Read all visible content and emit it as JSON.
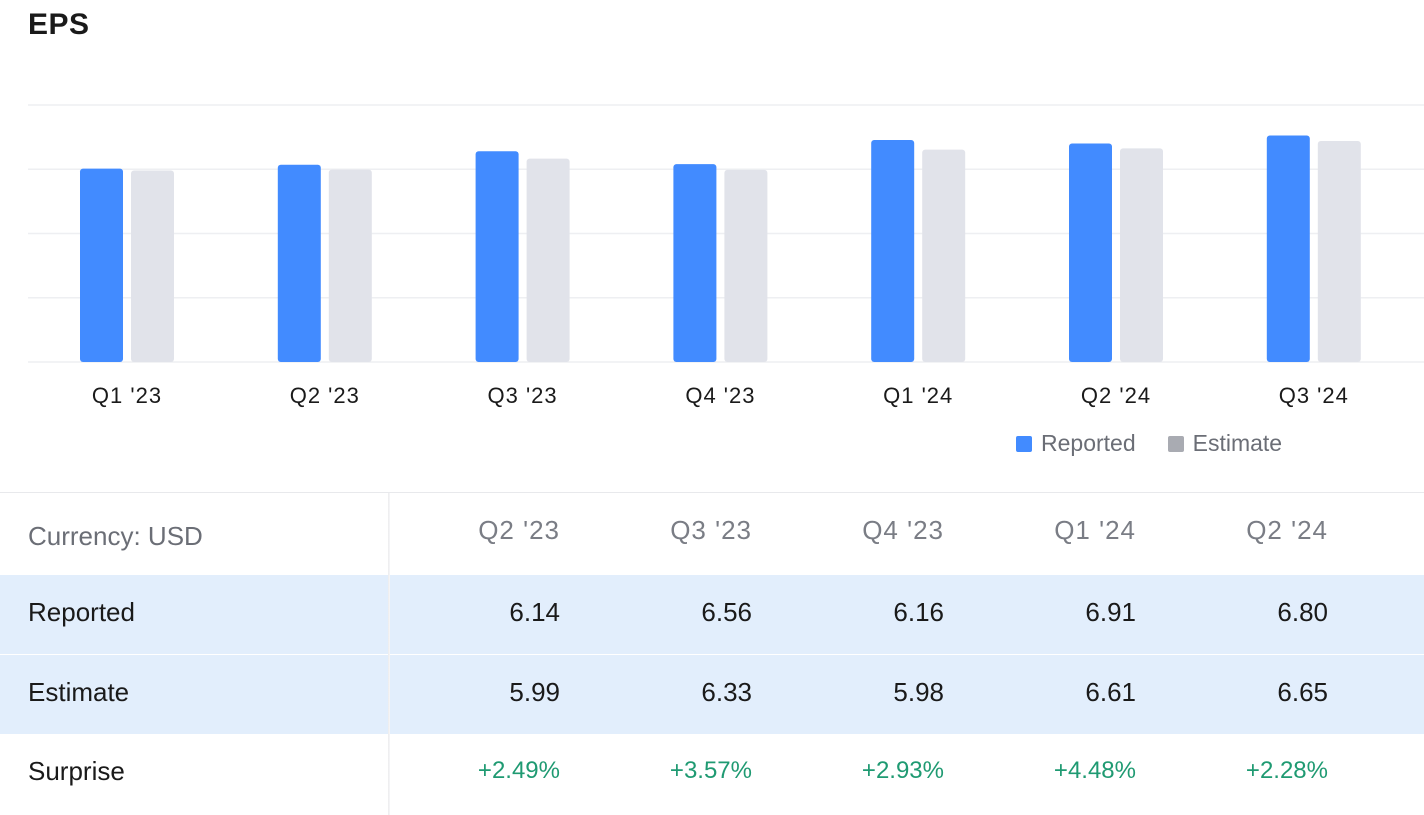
{
  "title": "EPS",
  "colors": {
    "reported": "#428bff",
    "estimate": "#e1e3ea",
    "positive": "#1f9a72"
  },
  "legend": [
    {
      "label": "Reported",
      "color": "#428bff"
    },
    {
      "label": "Estimate",
      "color": "#a9abb2"
    }
  ],
  "chart_data": {
    "type": "bar",
    "categories": [
      "Q1 '23",
      "Q2 '23",
      "Q3 '23",
      "Q4 '23",
      "Q1 '24",
      "Q2 '24",
      "Q3 '24"
    ],
    "series": [
      {
        "name": "Reported",
        "values": [
          6.02,
          6.14,
          6.56,
          6.16,
          6.91,
          6.8,
          7.05
        ]
      },
      {
        "name": "Estimate",
        "values": [
          5.96,
          5.99,
          6.33,
          5.98,
          6.61,
          6.65,
          6.88
        ]
      }
    ],
    "ylim": [
      0,
      8
    ],
    "grid": true,
    "legend_position": "bottom-right"
  },
  "table": {
    "currency_label": "Currency: USD",
    "columns": [
      "Q2 '23",
      "Q3 '23",
      "Q4 '23",
      "Q1 '24",
      "Q2 '24"
    ],
    "rows": [
      {
        "label": "Reported",
        "values": [
          "6.14",
          "6.56",
          "6.16",
          "6.91",
          "6.80"
        ]
      },
      {
        "label": "Estimate",
        "values": [
          "5.99",
          "6.33",
          "5.98",
          "6.61",
          "6.65"
        ]
      },
      {
        "label": "Surprise",
        "values": [
          "+2.49%",
          "+3.57%",
          "+2.93%",
          "+4.48%",
          "+2.28%"
        ]
      }
    ]
  }
}
